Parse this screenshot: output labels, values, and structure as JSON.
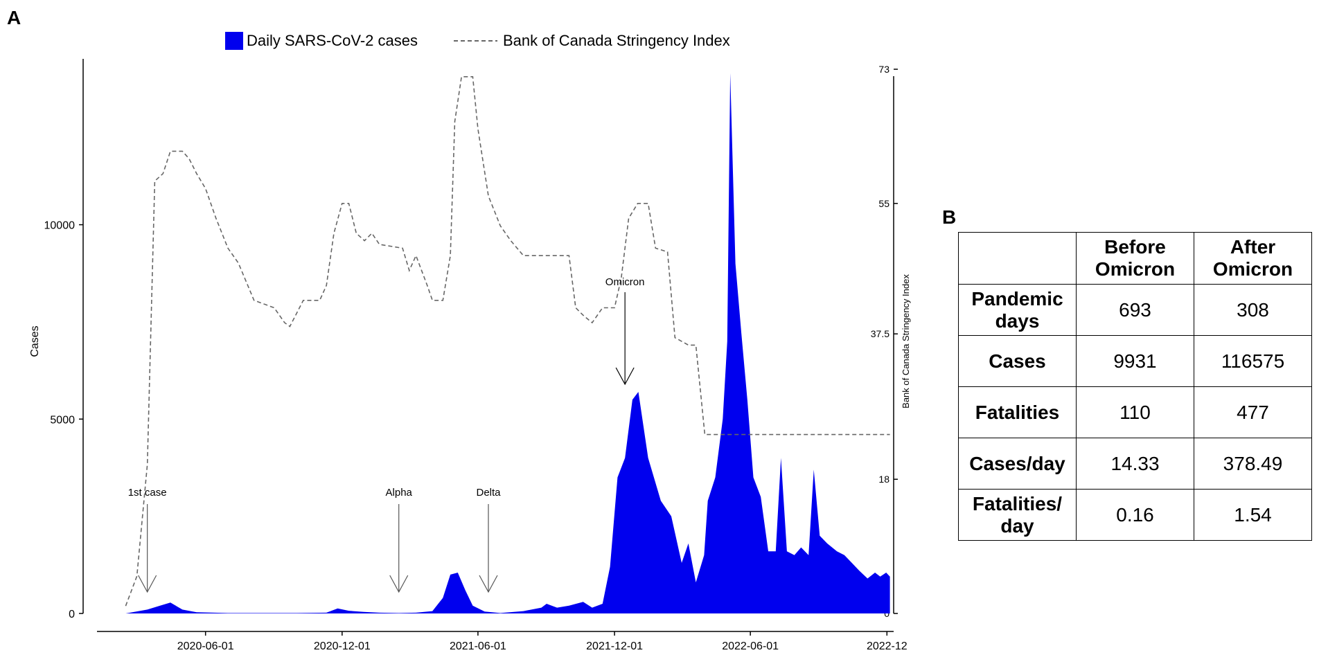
{
  "panel_a_label": "A",
  "panel_b_label": "B",
  "chart_data": {
    "type": "area",
    "title": "",
    "xlabel": "",
    "ylabel": "Cases",
    "y2label": "Bank of Canada Stringency Index",
    "ylim": [
      0,
      14000
    ],
    "y2lim": [
      0,
      73
    ],
    "xlim": [
      "2019-12-20",
      "2022-12-10"
    ],
    "yticks": [
      0,
      5000,
      10000
    ],
    "y2ticks": [
      "0",
      "18",
      "37.5",
      "55",
      "73"
    ],
    "xticks": [
      "2020-06-01",
      "2020-12-01",
      "2021-06-01",
      "2021-12-01",
      "2022-06-01",
      "2022-12"
    ],
    "grid": false,
    "legend_position": "top",
    "legend": [
      {
        "name": "Daily SARS-CoV-2 cases",
        "style": "fill",
        "color": "#0000ee"
      },
      {
        "name": "Bank of Canada Stringency Index",
        "style": "dashed",
        "color": "#666666"
      }
    ],
    "annotations": [
      {
        "text": "1st case",
        "date": "2020-03-15"
      },
      {
        "text": "Alpha",
        "date": "2021-02-15"
      },
      {
        "text": "Delta",
        "date": "2021-06-15"
      },
      {
        "text": "Omicron",
        "date": "2021-12-15"
      }
    ],
    "series": [
      {
        "name": "Daily SARS-CoV-2 cases",
        "type": "area",
        "color": "#0000ee",
        "points": [
          [
            "2020-01-05",
            0
          ],
          [
            "2020-02-15",
            0
          ],
          [
            "2020-03-15",
            100
          ],
          [
            "2020-04-01",
            200
          ],
          [
            "2020-04-15",
            280
          ],
          [
            "2020-05-01",
            100
          ],
          [
            "2020-05-20",
            30
          ],
          [
            "2020-07-01",
            10
          ],
          [
            "2020-10-01",
            10
          ],
          [
            "2020-11-10",
            20
          ],
          [
            "2020-11-25",
            130
          ],
          [
            "2020-12-10",
            70
          ],
          [
            "2020-12-30",
            40
          ],
          [
            "2021-01-20",
            20
          ],
          [
            "2021-02-15",
            10
          ],
          [
            "2021-03-10",
            20
          ],
          [
            "2021-04-01",
            60
          ],
          [
            "2021-04-15",
            400
          ],
          [
            "2021-04-25",
            1000
          ],
          [
            "2021-05-05",
            1050
          ],
          [
            "2021-05-15",
            600
          ],
          [
            "2021-05-25",
            200
          ],
          [
            "2021-06-10",
            50
          ],
          [
            "2021-07-01",
            10
          ],
          [
            "2021-08-01",
            60
          ],
          [
            "2021-08-25",
            150
          ],
          [
            "2021-09-01",
            250
          ],
          [
            "2021-09-15",
            150
          ],
          [
            "2021-10-01",
            200
          ],
          [
            "2021-10-20",
            300
          ],
          [
            "2021-11-01",
            150
          ],
          [
            "2021-11-15",
            250
          ],
          [
            "2021-11-25",
            1200
          ],
          [
            "2021-12-05",
            3500
          ],
          [
            "2021-12-15",
            4000
          ],
          [
            "2021-12-25",
            5500
          ],
          [
            "2022-01-02",
            5700
          ],
          [
            "2022-01-15",
            4000
          ],
          [
            "2022-02-01",
            2900
          ],
          [
            "2022-02-15",
            2500
          ],
          [
            "2022-03-01",
            1300
          ],
          [
            "2022-03-10",
            1800
          ],
          [
            "2022-03-20",
            800
          ],
          [
            "2022-03-31",
            1500
          ],
          [
            "2022-04-05",
            2900
          ],
          [
            "2022-04-15",
            3500
          ],
          [
            "2022-04-25",
            5000
          ],
          [
            "2022-05-01",
            7000
          ],
          [
            "2022-05-05",
            13900
          ],
          [
            "2022-05-12",
            9000
          ],
          [
            "2022-05-20",
            7200
          ],
          [
            "2022-05-28",
            5500
          ],
          [
            "2022-06-05",
            3500
          ],
          [
            "2022-06-15",
            3000
          ],
          [
            "2022-06-25",
            1600
          ],
          [
            "2022-07-05",
            1600
          ],
          [
            "2022-07-12",
            4000
          ],
          [
            "2022-07-20",
            1600
          ],
          [
            "2022-07-30",
            1500
          ],
          [
            "2022-08-08",
            1700
          ],
          [
            "2022-08-18",
            1500
          ],
          [
            "2022-08-25",
            3700
          ],
          [
            "2022-09-02",
            2000
          ],
          [
            "2022-09-12",
            1800
          ],
          [
            "2022-09-25",
            1600
          ],
          [
            "2022-10-05",
            1500
          ],
          [
            "2022-10-15",
            1300
          ],
          [
            "2022-10-25",
            1100
          ],
          [
            "2022-11-05",
            900
          ],
          [
            "2022-11-15",
            1050
          ],
          [
            "2022-11-22",
            950
          ],
          [
            "2022-11-30",
            1050
          ],
          [
            "2022-12-05",
            950
          ]
        ]
      },
      {
        "name": "Bank of Canada Stringency Index",
        "type": "line",
        "style": "dashed",
        "axis": "right",
        "color": "#666666",
        "points": [
          [
            "2020-02-15",
            1
          ],
          [
            "2020-03-01",
            5
          ],
          [
            "2020-03-15",
            20
          ],
          [
            "2020-03-25",
            58
          ],
          [
            "2020-04-05",
            59
          ],
          [
            "2020-04-15",
            62
          ],
          [
            "2020-05-01",
            62
          ],
          [
            "2020-05-10",
            61
          ],
          [
            "2020-05-20",
            59
          ],
          [
            "2020-06-01",
            57
          ],
          [
            "2020-06-15",
            53
          ],
          [
            "2020-07-01",
            49
          ],
          [
            "2020-07-15",
            47
          ],
          [
            "2020-08-05",
            42
          ],
          [
            "2020-09-01",
            41
          ],
          [
            "2020-09-15",
            39
          ],
          [
            "2020-09-22",
            38.5
          ],
          [
            "2020-10-10",
            42
          ],
          [
            "2020-11-01",
            42
          ],
          [
            "2020-11-10",
            44
          ],
          [
            "2020-11-20",
            51
          ],
          [
            "2020-12-01",
            55
          ],
          [
            "2020-12-10",
            55
          ],
          [
            "2020-12-20",
            51
          ],
          [
            "2020-12-31",
            50
          ],
          [
            "2021-01-10",
            51
          ],
          [
            "2021-01-20",
            49.5
          ],
          [
            "2021-02-20",
            49
          ],
          [
            "2021-03-01",
            46
          ],
          [
            "2021-03-10",
            48
          ],
          [
            "2021-03-25",
            44
          ],
          [
            "2021-04-01",
            42
          ],
          [
            "2021-04-15",
            42
          ],
          [
            "2021-04-25",
            48
          ],
          [
            "2021-05-01",
            66
          ],
          [
            "2021-05-10",
            72
          ],
          [
            "2021-05-25",
            72
          ],
          [
            "2021-06-01",
            65
          ],
          [
            "2021-06-15",
            56
          ],
          [
            "2021-07-01",
            52
          ],
          [
            "2021-07-15",
            50
          ],
          [
            "2021-08-01",
            48
          ],
          [
            "2021-09-01",
            48
          ],
          [
            "2021-10-01",
            48
          ],
          [
            "2021-10-10",
            41
          ],
          [
            "2021-10-20",
            40
          ],
          [
            "2021-11-01",
            39
          ],
          [
            "2021-11-15",
            41
          ],
          [
            "2021-12-01",
            41
          ],
          [
            "2021-12-10",
            45
          ],
          [
            "2021-12-20",
            53
          ],
          [
            "2022-01-01",
            55
          ],
          [
            "2022-01-15",
            55
          ],
          [
            "2022-01-25",
            49
          ],
          [
            "2022-02-10",
            48.5
          ],
          [
            "2022-02-20",
            37
          ],
          [
            "2022-03-10",
            36
          ],
          [
            "2022-03-20",
            36
          ],
          [
            "2022-04-01",
            24
          ],
          [
            "2022-04-10",
            24
          ],
          [
            "2022-12-05",
            24
          ]
        ]
      }
    ],
    "table": {
      "columns": [
        "",
        "Before Omicron",
        "After Omicron"
      ],
      "rows": [
        {
          "label": "Pandemic days",
          "before": "693",
          "after": "308"
        },
        {
          "label": "Cases",
          "before": "9931",
          "after": "116575"
        },
        {
          "label": "Fatalities",
          "before": "110",
          "after": "477"
        },
        {
          "label": "Cases/day",
          "before": "14.33",
          "after": "378.49"
        },
        {
          "label": "Fatalities/ day",
          "before": "0.16",
          "after": "1.54"
        }
      ]
    }
  }
}
